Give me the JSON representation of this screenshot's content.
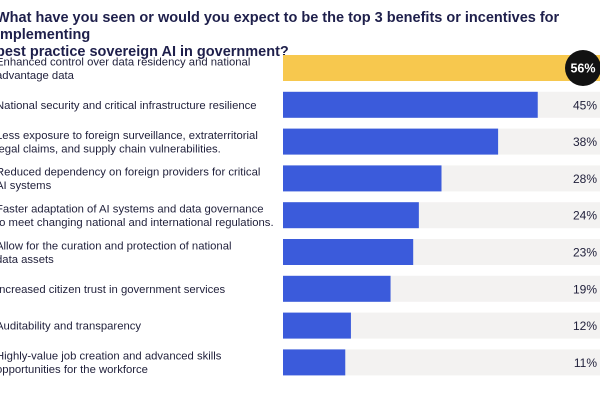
{
  "title": "What have you seen or would you expect to be the top 3 benefits or incentives for implementing\nbest practice sovereign AI in government?",
  "colors": {
    "bar": "#3b5bdb",
    "highlight_bar": "#f7c84e",
    "track": "#f3f2f1",
    "highlight_badge": "#121212"
  },
  "chart_data": {
    "type": "bar",
    "orientation": "horizontal",
    "unit": "%",
    "xlim": [
      0,
      56
    ],
    "categories": [
      "Enhanced control over data residency and national\nadvantage data",
      "National security and critical infrastructure resilience",
      "Less exposure to foreign surveillance, extraterritorial\nlegal claims, and supply chain vulnerabilities.",
      "Reduced dependency on foreign providers for critical\nAI systems",
      "Faster adaptation of AI systems and data governance\nto meet changing national and international regulations.",
      "Allow for the curation and protection of national\ndata assets",
      "Increased citizen trust in government services",
      "Auditability and transparency",
      "Highly-value job creation and advanced skills\nopportunities for the workforce"
    ],
    "values": [
      56,
      45,
      38,
      28,
      24,
      23,
      19,
      12,
      11
    ],
    "value_labels": [
      "56%",
      "45%",
      "38%",
      "28%",
      "24%",
      "23%",
      "19%",
      "12%",
      "11%"
    ],
    "highlight_index": 0
  }
}
